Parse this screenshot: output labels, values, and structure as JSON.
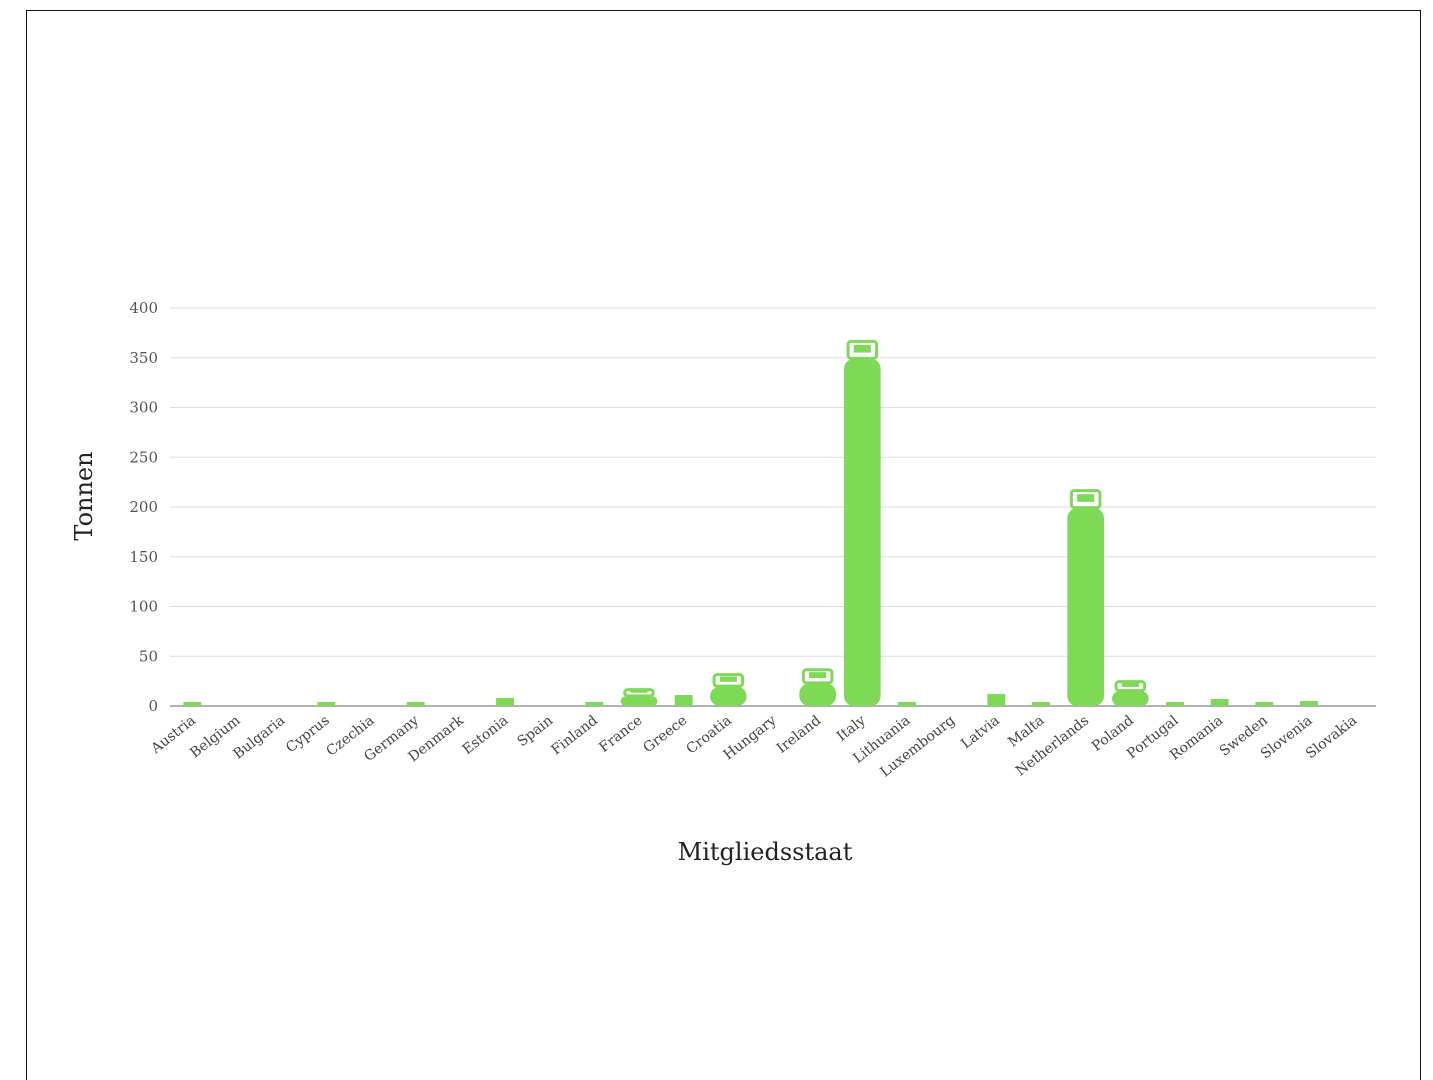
{
  "chart_data": {
    "type": "bar",
    "xlabel": "Mitgliedsstaat",
    "ylabel": "Tonnen",
    "ylim": [
      0,
      400
    ],
    "yticks": [
      0,
      50,
      100,
      150,
      200,
      250,
      300,
      350,
      400
    ],
    "grid": true,
    "bar_color": "#7ed957",
    "categories": [
      "Austria",
      "Belgium",
      "Bulgaria",
      "Cyprus",
      "Czechia",
      "Germany",
      "Denmark",
      "Estonia",
      "Spain",
      "Finland",
      "France",
      "Greece",
      "Croatia",
      "Hungary",
      "Ireland",
      "Italy",
      "Lithuania",
      "Luxembourg",
      "Latvia",
      "Malta",
      "Netherlands",
      "Poland",
      "Portugal",
      "Romania",
      "Sweden",
      "Slovenia",
      "Slovakia"
    ],
    "values": [
      4,
      0,
      0,
      4,
      0,
      4,
      0,
      8,
      0,
      4,
      18,
      11,
      33,
      0,
      38,
      368,
      4,
      0,
      12,
      4,
      218,
      26,
      4,
      7,
      4,
      5,
      0
    ]
  }
}
